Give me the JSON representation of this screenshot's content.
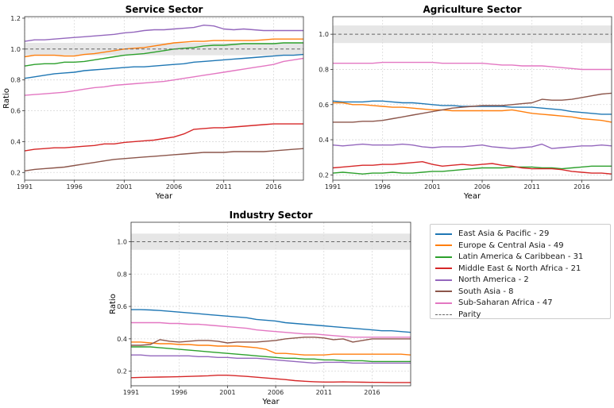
{
  "legend": [
    {
      "label": "East Asia & Pacific - 29",
      "color": "#1f77b4"
    },
    {
      "label": "Europe & Central Asia - 49",
      "color": "#ff7f0e"
    },
    {
      "label": "Latin America & Caribbean - 31",
      "color": "#2ca02c"
    },
    {
      "label": "Middle East & North Africa - 21",
      "color": "#d62728"
    },
    {
      "label": "North America - 2",
      "color": "#9467bd"
    },
    {
      "label": "South Asia - 8",
      "color": "#8c564b"
    },
    {
      "label": "Sub-Saharan Africa - 47",
      "color": "#e377c2"
    },
    {
      "label": "Parity",
      "color": "#666666",
      "dashed": true
    }
  ],
  "chart_data": [
    {
      "type": "line",
      "title": "Service Sector",
      "xlabel": "Year",
      "ylabel": "Ratio",
      "xlim": [
        1991,
        2019
      ],
      "ylim": [
        0.15,
        1.21
      ],
      "xticks": [
        1991,
        1996,
        2001,
        2006,
        2011,
        2016
      ],
      "yticks": [
        0.2,
        0.4,
        0.6,
        0.8,
        1.0,
        1.2
      ],
      "ytick_labels": [
        "0.2",
        "0.4",
        "0.6",
        "0.8",
        "1.0",
        "1.2"
      ],
      "grid": true,
      "parity": 1.0,
      "parity_band": [
        0.96,
        1.04
      ],
      "x": [
        1991,
        1992,
        1993,
        1994,
        1995,
        1996,
        1997,
        1998,
        1999,
        2000,
        2001,
        2002,
        2003,
        2004,
        2005,
        2006,
        2007,
        2008,
        2009,
        2010,
        2011,
        2012,
        2013,
        2014,
        2015,
        2016,
        2017,
        2018,
        2019
      ],
      "series": [
        {
          "name": "East Asia & Pacific - 29",
          "values": [
            0.81,
            0.82,
            0.83,
            0.84,
            0.845,
            0.85,
            0.86,
            0.865,
            0.87,
            0.875,
            0.88,
            0.885,
            0.885,
            0.89,
            0.895,
            0.9,
            0.905,
            0.915,
            0.92,
            0.925,
            0.93,
            0.935,
            0.94,
            0.945,
            0.95,
            0.955,
            0.96,
            0.96,
            0.965
          ]
        },
        {
          "name": "Europe & Central Asia - 49",
          "values": [
            0.95,
            0.96,
            0.96,
            0.96,
            0.955,
            0.955,
            0.965,
            0.97,
            0.98,
            0.99,
            1.0,
            1.005,
            1.01,
            1.02,
            1.03,
            1.04,
            1.045,
            1.05,
            1.05,
            1.055,
            1.055,
            1.055,
            1.055,
            1.055,
            1.06,
            1.065,
            1.065,
            1.065,
            1.065
          ]
        },
        {
          "name": "Latin America & Caribbean - 31",
          "values": [
            0.89,
            0.9,
            0.905,
            0.905,
            0.915,
            0.915,
            0.92,
            0.93,
            0.94,
            0.95,
            0.96,
            0.965,
            0.97,
            0.98,
            0.99,
            1.0,
            1.005,
            1.01,
            1.02,
            1.025,
            1.025,
            1.03,
            1.035,
            1.035,
            1.035,
            1.035,
            1.04,
            1.04,
            1.04
          ]
        },
        {
          "name": "Middle East & North Africa - 21",
          "values": [
            0.34,
            0.35,
            0.355,
            0.36,
            0.36,
            0.365,
            0.37,
            0.375,
            0.385,
            0.385,
            0.395,
            0.4,
            0.405,
            0.41,
            0.42,
            0.43,
            0.45,
            0.48,
            0.485,
            0.49,
            0.49,
            0.495,
            0.5,
            0.505,
            0.51,
            0.515,
            0.515,
            0.515,
            0.515
          ]
        },
        {
          "name": "North America - 2",
          "values": [
            1.05,
            1.06,
            1.06,
            1.065,
            1.07,
            1.075,
            1.08,
            1.085,
            1.09,
            1.095,
            1.105,
            1.11,
            1.12,
            1.125,
            1.125,
            1.13,
            1.135,
            1.14,
            1.155,
            1.15,
            1.13,
            1.125,
            1.13,
            1.125,
            1.12,
            1.12,
            1.12,
            1.12,
            1.12
          ]
        },
        {
          "name": "South Asia - 8",
          "values": [
            0.21,
            0.22,
            0.225,
            0.23,
            0.235,
            0.245,
            0.255,
            0.265,
            0.275,
            0.285,
            0.29,
            0.295,
            0.3,
            0.305,
            0.31,
            0.315,
            0.32,
            0.325,
            0.33,
            0.33,
            0.33,
            0.335,
            0.335,
            0.335,
            0.335,
            0.34,
            0.345,
            0.35,
            0.355
          ]
        },
        {
          "name": "Sub-Saharan Africa - 47",
          "values": [
            0.7,
            0.705,
            0.71,
            0.715,
            0.72,
            0.73,
            0.74,
            0.75,
            0.755,
            0.765,
            0.77,
            0.775,
            0.78,
            0.785,
            0.79,
            0.8,
            0.81,
            0.82,
            0.83,
            0.84,
            0.85,
            0.86,
            0.87,
            0.88,
            0.89,
            0.9,
            0.92,
            0.93,
            0.94
          ]
        }
      ]
    },
    {
      "type": "line",
      "title": "Agriculture Sector",
      "xlabel": "Year",
      "ylabel": "",
      "xlim": [
        1991,
        2019
      ],
      "ylim": [
        0.17,
        1.1
      ],
      "xticks": [
        1991,
        1996,
        2001,
        2006,
        2011,
        2016
      ],
      "yticks": [
        0.2,
        0.4,
        0.6,
        0.8,
        1.0
      ],
      "ytick_labels": [
        "0.2",
        "0.4",
        "0.6",
        "0.8",
        "1.0"
      ],
      "grid": true,
      "parity": 1.0,
      "parity_band": [
        0.95,
        1.05
      ],
      "x": [
        1991,
        1992,
        1993,
        1994,
        1995,
        1996,
        1997,
        1998,
        1999,
        2000,
        2001,
        2002,
        2003,
        2004,
        2005,
        2006,
        2007,
        2008,
        2009,
        2010,
        2011,
        2012,
        2013,
        2014,
        2015,
        2016,
        2017,
        2018,
        2019
      ],
      "series": [
        {
          "name": "East Asia & Pacific - 29",
          "values": [
            0.62,
            0.615,
            0.615,
            0.615,
            0.62,
            0.62,
            0.615,
            0.61,
            0.61,
            0.605,
            0.6,
            0.595,
            0.595,
            0.59,
            0.59,
            0.59,
            0.59,
            0.59,
            0.585,
            0.585,
            0.585,
            0.58,
            0.575,
            0.57,
            0.56,
            0.555,
            0.55,
            0.545,
            0.545
          ]
        },
        {
          "name": "Europe & Central Asia - 49",
          "values": [
            0.61,
            0.61,
            0.6,
            0.6,
            0.595,
            0.59,
            0.585,
            0.585,
            0.58,
            0.575,
            0.57,
            0.57,
            0.565,
            0.565,
            0.565,
            0.565,
            0.565,
            0.565,
            0.57,
            0.56,
            0.55,
            0.545,
            0.54,
            0.535,
            0.53,
            0.52,
            0.515,
            0.51,
            0.5
          ]
        },
        {
          "name": "Latin America & Caribbean - 31",
          "values": [
            0.21,
            0.215,
            0.21,
            0.205,
            0.21,
            0.21,
            0.215,
            0.21,
            0.21,
            0.215,
            0.22,
            0.22,
            0.225,
            0.23,
            0.235,
            0.24,
            0.24,
            0.24,
            0.245,
            0.245,
            0.245,
            0.24,
            0.24,
            0.235,
            0.24,
            0.245,
            0.25,
            0.25,
            0.25
          ]
        },
        {
          "name": "Middle East & North Africa - 21",
          "values": [
            0.24,
            0.245,
            0.25,
            0.255,
            0.255,
            0.26,
            0.26,
            0.265,
            0.27,
            0.275,
            0.26,
            0.25,
            0.255,
            0.26,
            0.255,
            0.26,
            0.265,
            0.255,
            0.25,
            0.24,
            0.235,
            0.235,
            0.235,
            0.23,
            0.22,
            0.215,
            0.21,
            0.21,
            0.205
          ]
        },
        {
          "name": "North America - 2",
          "values": [
            0.37,
            0.365,
            0.37,
            0.375,
            0.37,
            0.37,
            0.37,
            0.375,
            0.37,
            0.36,
            0.355,
            0.36,
            0.36,
            0.36,
            0.365,
            0.37,
            0.36,
            0.355,
            0.35,
            0.355,
            0.36,
            0.375,
            0.35,
            0.355,
            0.36,
            0.365,
            0.365,
            0.37,
            0.365
          ]
        },
        {
          "name": "South Asia - 8",
          "values": [
            0.5,
            0.5,
            0.5,
            0.505,
            0.505,
            0.51,
            0.52,
            0.53,
            0.54,
            0.55,
            0.56,
            0.57,
            0.58,
            0.585,
            0.59,
            0.595,
            0.595,
            0.595,
            0.6,
            0.605,
            0.61,
            0.63,
            0.625,
            0.625,
            0.63,
            0.64,
            0.65,
            0.66,
            0.665
          ]
        },
        {
          "name": "Sub-Saharan Africa - 47",
          "values": [
            0.835,
            0.835,
            0.835,
            0.835,
            0.835,
            0.84,
            0.84,
            0.84,
            0.84,
            0.84,
            0.84,
            0.835,
            0.835,
            0.835,
            0.835,
            0.835,
            0.83,
            0.825,
            0.825,
            0.82,
            0.82,
            0.82,
            0.815,
            0.81,
            0.805,
            0.8,
            0.8,
            0.8,
            0.8
          ]
        }
      ]
    },
    {
      "type": "line",
      "title": "Industry Sector",
      "xlabel": "Year",
      "ylabel": "Ratio",
      "xlim": [
        1991,
        2020
      ],
      "ylim": [
        0.11,
        1.12
      ],
      "xticks": [
        1991,
        1996,
        2001,
        2006,
        2011,
        2016
      ],
      "yticks": [
        0.2,
        0.4,
        0.6,
        0.8,
        1.0
      ],
      "ytick_labels": [
        "0.2",
        "0.4",
        "0.6",
        "0.8",
        "1.0"
      ],
      "grid": true,
      "parity": 1.0,
      "parity_band": [
        0.95,
        1.05
      ],
      "x": [
        1991,
        1992,
        1993,
        1994,
        1995,
        1996,
        1997,
        1998,
        1999,
        2000,
        2001,
        2002,
        2003,
        2004,
        2005,
        2006,
        2007,
        2008,
        2009,
        2010,
        2011,
        2012,
        2013,
        2014,
        2015,
        2016,
        2017,
        2018,
        2019,
        2020
      ],
      "series": [
        {
          "name": "East Asia & Pacific - 29",
          "values": [
            0.58,
            0.58,
            0.578,
            0.575,
            0.57,
            0.565,
            0.56,
            0.555,
            0.55,
            0.545,
            0.54,
            0.535,
            0.53,
            0.52,
            0.515,
            0.51,
            0.5,
            0.495,
            0.49,
            0.485,
            0.48,
            0.475,
            0.47,
            0.465,
            0.46,
            0.455,
            0.45,
            0.45,
            0.445,
            0.44
          ]
        },
        {
          "name": "Europe & Central Asia - 49",
          "values": [
            0.38,
            0.38,
            0.375,
            0.37,
            0.37,
            0.365,
            0.365,
            0.36,
            0.36,
            0.355,
            0.355,
            0.355,
            0.35,
            0.345,
            0.335,
            0.31,
            0.31,
            0.305,
            0.3,
            0.3,
            0.3,
            0.305,
            0.305,
            0.305,
            0.305,
            0.305,
            0.305,
            0.305,
            0.305,
            0.3
          ]
        },
        {
          "name": "Latin America & Caribbean - 31",
          "values": [
            0.35,
            0.35,
            0.35,
            0.345,
            0.34,
            0.335,
            0.33,
            0.325,
            0.32,
            0.315,
            0.31,
            0.305,
            0.3,
            0.295,
            0.29,
            0.285,
            0.28,
            0.28,
            0.275,
            0.275,
            0.27,
            0.27,
            0.265,
            0.265,
            0.265,
            0.26,
            0.26,
            0.26,
            0.26,
            0.26
          ]
        },
        {
          "name": "Middle East & North Africa - 21",
          "values": [
            0.16,
            0.162,
            0.163,
            0.164,
            0.165,
            0.166,
            0.168,
            0.17,
            0.172,
            0.175,
            0.175,
            0.172,
            0.168,
            0.163,
            0.158,
            0.153,
            0.148,
            0.142,
            0.138,
            0.135,
            0.133,
            0.133,
            0.134,
            0.133,
            0.132,
            0.131,
            0.131,
            0.13,
            0.13,
            0.13
          ]
        },
        {
          "name": "North America - 2",
          "values": [
            0.3,
            0.3,
            0.295,
            0.295,
            0.295,
            0.295,
            0.295,
            0.29,
            0.29,
            0.285,
            0.285,
            0.28,
            0.28,
            0.28,
            0.275,
            0.27,
            0.265,
            0.26,
            0.255,
            0.25,
            0.255,
            0.255,
            0.255,
            0.25,
            0.25,
            0.25,
            0.25,
            0.25,
            0.25,
            0.25
          ]
        },
        {
          "name": "South Asia - 8",
          "values": [
            0.36,
            0.36,
            0.365,
            0.395,
            0.385,
            0.38,
            0.385,
            0.39,
            0.39,
            0.385,
            0.375,
            0.38,
            0.38,
            0.38,
            0.385,
            0.39,
            0.4,
            0.405,
            0.41,
            0.41,
            0.405,
            0.395,
            0.4,
            0.38,
            0.39,
            0.4,
            0.4,
            0.4,
            0.4,
            0.4
          ]
        },
        {
          "name": "Sub-Saharan Africa - 47",
          "values": [
            0.5,
            0.5,
            0.5,
            0.5,
            0.495,
            0.495,
            0.49,
            0.49,
            0.485,
            0.48,
            0.475,
            0.47,
            0.465,
            0.455,
            0.45,
            0.445,
            0.44,
            0.435,
            0.43,
            0.43,
            0.425,
            0.42,
            0.415,
            0.41,
            0.41,
            0.41,
            0.41,
            0.41,
            0.41,
            0.41
          ]
        }
      ]
    }
  ]
}
